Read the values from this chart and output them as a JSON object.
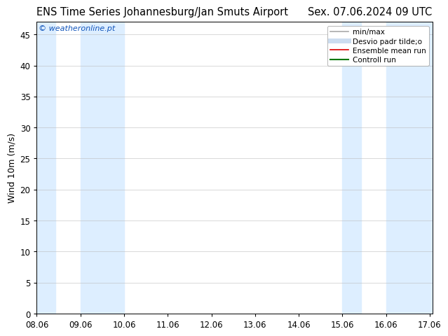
{
  "title_left": "ENS Time Series Johannesburg/Jan Smuts Airport",
  "title_right": "Sex. 07.06.2024 09 UTC",
  "ylabel": "Wind 10m (m/s)",
  "watermark": "© weatheronline.pt",
  "watermark_color": "#1155bb",
  "xlim_min": 8.0,
  "xlim_max": 17.06,
  "ylim_min": 0,
  "ylim_max": 47,
  "yticks": [
    0,
    5,
    10,
    15,
    20,
    25,
    30,
    35,
    40,
    45
  ],
  "xtick_labels": [
    "08.06",
    "09.06",
    "10.06",
    "11.06",
    "12.06",
    "13.06",
    "14.06",
    "15.06",
    "16.06",
    "17.06"
  ],
  "xtick_positions": [
    8.0,
    9.0,
    10.0,
    11.0,
    12.0,
    13.0,
    14.0,
    15.0,
    16.0,
    17.0
  ],
  "bg_color": "#ffffff",
  "plot_bg_color": "#ffffff",
  "shaded_bands": [
    {
      "xmin": 8.0,
      "xmax": 8.42,
      "color": "#ddeeff"
    },
    {
      "xmin": 9.0,
      "xmax": 10.0,
      "color": "#ddeeff"
    },
    {
      "xmin": 15.0,
      "xmax": 15.42,
      "color": "#ddeeff"
    },
    {
      "xmin": 16.0,
      "xmax": 17.06,
      "color": "#ddeeff"
    }
  ],
  "legend_entries": [
    {
      "label": "min/max",
      "color": "#aaaaaa",
      "lw": 1.2,
      "style": "solid"
    },
    {
      "label": "Desvio padr tilde;o",
      "color": "#ccddf0",
      "lw": 5,
      "style": "solid"
    },
    {
      "label": "Ensemble mean run",
      "color": "#dd0000",
      "lw": 1.2,
      "style": "solid"
    },
    {
      "label": "Controll run",
      "color": "#007700",
      "lw": 1.5,
      "style": "solid"
    }
  ],
  "title_fontsize": 10.5,
  "axis_fontsize": 9,
  "tick_fontsize": 8.5,
  "watermark_fontsize": 8
}
